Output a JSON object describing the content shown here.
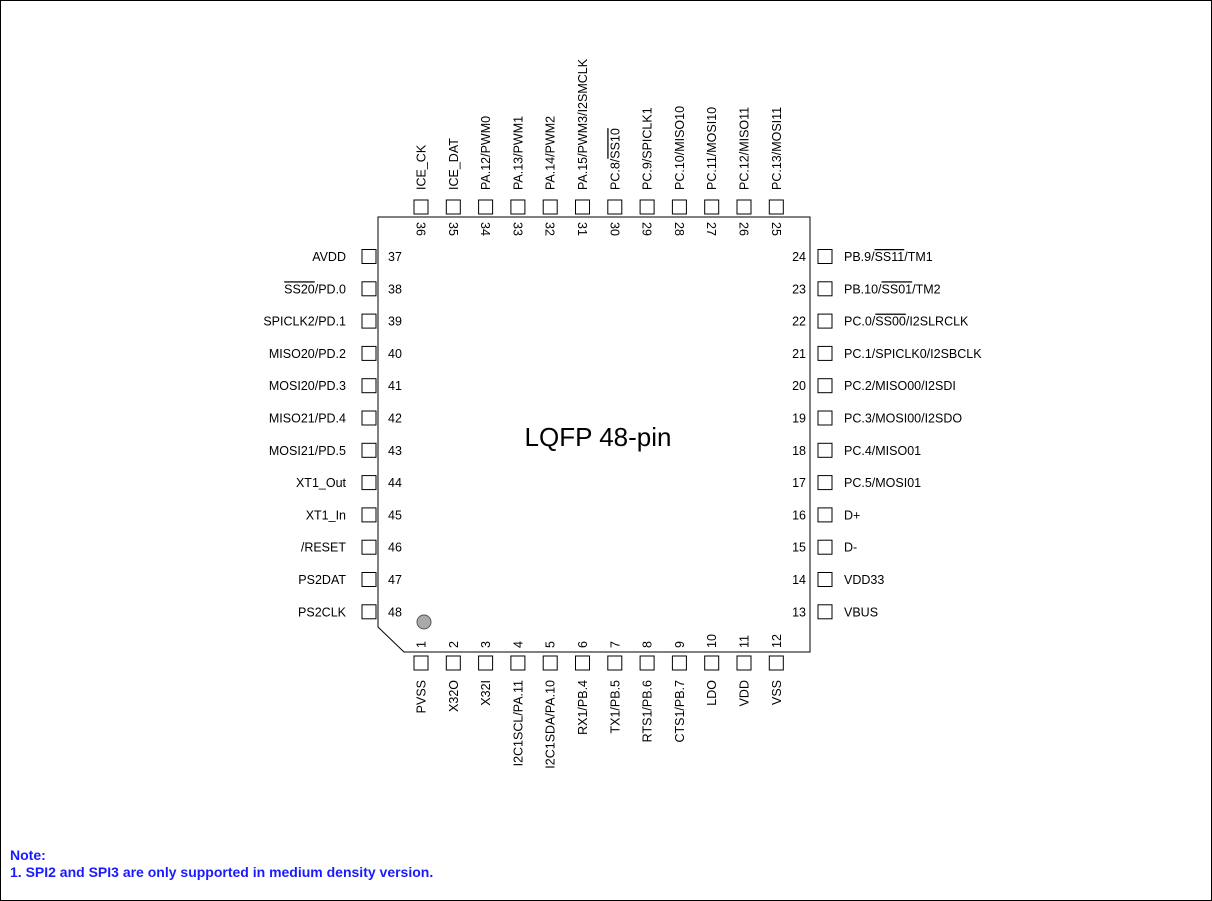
{
  "package_label": "LQFP 48-pin",
  "pin_groups": {
    "bottom": [
      {
        "num": "1",
        "name": "PVSS"
      },
      {
        "num": "2",
        "name": "X32O"
      },
      {
        "num": "3",
        "name": "X32I"
      },
      {
        "num": "4",
        "name": "I2C1SCL/PA.11"
      },
      {
        "num": "5",
        "name": "I2C1SDA/PA.10"
      },
      {
        "num": "6",
        "name": "RX1/PB.4"
      },
      {
        "num": "7",
        "name": "TX1/PB.5"
      },
      {
        "num": "8",
        "name": "RTS1/PB.6"
      },
      {
        "num": "9",
        "name": "CTS1/PB.7"
      },
      {
        "num": "10",
        "name": "LDO"
      },
      {
        "num": "11",
        "name": "VDD"
      },
      {
        "num": "12",
        "name": "VSS"
      }
    ],
    "right": [
      {
        "num": "24",
        "name": "PB.9/SS11/TM1",
        "overline": "SS11"
      },
      {
        "num": "23",
        "name": "PB.10/SS01/TM2",
        "overline": "SS01"
      },
      {
        "num": "22",
        "name": "PC.0/SS00/I2SLRCLK",
        "overline": "SS00"
      },
      {
        "num": "21",
        "name": "PC.1/SPICLK0/I2SBCLK"
      },
      {
        "num": "20",
        "name": "PC.2/MISO00/I2SDI"
      },
      {
        "num": "19",
        "name": "PC.3/MOSI00/I2SDO"
      },
      {
        "num": "18",
        "name": "PC.4/MISO01"
      },
      {
        "num": "17",
        "name": "PC.5/MOSI01"
      },
      {
        "num": "16",
        "name": "D+"
      },
      {
        "num": "15",
        "name": "D-"
      },
      {
        "num": "14",
        "name": "VDD33"
      },
      {
        "num": "13",
        "name": "VBUS"
      }
    ],
    "top": [
      {
        "num": "36",
        "name": "ICE_CK"
      },
      {
        "num": "35",
        "name": "ICE_DAT"
      },
      {
        "num": "34",
        "name": "PA.12/PWM0"
      },
      {
        "num": "33",
        "name": "PA.13/PWM1"
      },
      {
        "num": "32",
        "name": "PA.14/PWM2"
      },
      {
        "num": "31",
        "name": "PA.15/PWM3/I2SMCLK"
      },
      {
        "num": "30",
        "name": "PC.8/SS10",
        "overline": "SS10"
      },
      {
        "num": "29",
        "name": "PC.9/SPICLK1"
      },
      {
        "num": "28",
        "name": "PC.10/MISO10"
      },
      {
        "num": "27",
        "name": "PC.11/MOSI10"
      },
      {
        "num": "26",
        "name": "PC.12/MISO11"
      },
      {
        "num": "25",
        "name": "PC.13/MOSI11"
      }
    ],
    "left": [
      {
        "num": "37",
        "name": "AVDD"
      },
      {
        "num": "38",
        "name": "SS20/PD.0",
        "overline": "SS20"
      },
      {
        "num": "39",
        "name": "SPICLK2/PD.1"
      },
      {
        "num": "40",
        "name": "MISO20/PD.2"
      },
      {
        "num": "41",
        "name": "MOSI20/PD.3"
      },
      {
        "num": "42",
        "name": "MISO21/PD.4"
      },
      {
        "num": "43",
        "name": "MOSI21/PD.5"
      },
      {
        "num": "44",
        "name": "XT1_Out"
      },
      {
        "num": "45",
        "name": "XT1_In"
      },
      {
        "num": "46",
        "name": "/RESET"
      },
      {
        "num": "47",
        "name": "PS2DAT"
      },
      {
        "num": "48",
        "name": "PS2CLK"
      }
    ]
  },
  "note": {
    "heading": "Note:",
    "line1": "1. SPI2 and SPI3 are only supported in medium density version."
  }
}
